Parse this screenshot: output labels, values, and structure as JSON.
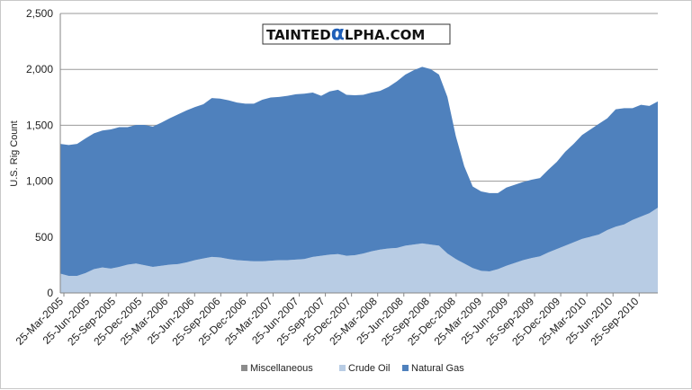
{
  "chart_data": {
    "type": "area",
    "stacked": true,
    "ylabel": "U.S. Rig Count",
    "ylim": [
      0,
      2500
    ],
    "y_ticks": [
      "0",
      "500",
      "1,000",
      "1,500",
      "2,000",
      "2,500"
    ],
    "x_tick_labels": [
      "25-Mar-2005",
      "25-Jun-2005",
      "25-Sep-2005",
      "25-Dec-2005",
      "25-Mar-2006",
      "25-Jun-2006",
      "25-Sep-2006",
      "25-Dec-2006",
      "25-Mar-2007",
      "25-Jun-2007",
      "25-Sep-2007",
      "25-Dec-2007",
      "25-Mar-2008",
      "25-Jun-2008",
      "25-Sep-2008",
      "25-Dec-2008",
      "25-Mar-2009",
      "25-Jun-2009",
      "25-Sep-2009",
      "25-Dec-2009",
      "25-Mar-2010",
      "25-Jun-2010",
      "25-Sep-2010"
    ],
    "grid": "horizontal",
    "legend_position": "bottom",
    "x": [
      "2005-01",
      "2005-02",
      "2005-03",
      "2005-04",
      "2005-05",
      "2005-06",
      "2005-07",
      "2005-08",
      "2005-09",
      "2005-10",
      "2005-11",
      "2005-12",
      "2006-01",
      "2006-02",
      "2006-03",
      "2006-04",
      "2006-05",
      "2006-06",
      "2006-07",
      "2006-08",
      "2006-09",
      "2006-10",
      "2006-11",
      "2006-12",
      "2007-01",
      "2007-02",
      "2007-03",
      "2007-04",
      "2007-05",
      "2007-06",
      "2007-07",
      "2007-08",
      "2007-09",
      "2007-10",
      "2007-11",
      "2007-12",
      "2008-01",
      "2008-02",
      "2008-03",
      "2008-04",
      "2008-05",
      "2008-06",
      "2008-07",
      "2008-08",
      "2008-09",
      "2008-10",
      "2008-11",
      "2008-12",
      "2009-01",
      "2009-02",
      "2009-03",
      "2009-04",
      "2009-05",
      "2009-06",
      "2009-07",
      "2009-08",
      "2009-09",
      "2009-10",
      "2009-11",
      "2009-12",
      "2010-01",
      "2010-02",
      "2010-03",
      "2010-04",
      "2010-05",
      "2010-06",
      "2010-07",
      "2010-08",
      "2010-09",
      "2010-10",
      "2010-11",
      "2010-12"
    ],
    "series": [
      {
        "name": "Miscellaneous",
        "color": "#8c8c8c",
        "values": [
          3,
          3,
          3,
          3,
          3,
          3,
          3,
          3,
          3,
          3,
          3,
          3,
          3,
          3,
          3,
          3,
          3,
          3,
          3,
          3,
          3,
          3,
          3,
          3,
          3,
          3,
          3,
          3,
          3,
          3,
          3,
          3,
          3,
          3,
          3,
          3,
          3,
          3,
          3,
          3,
          3,
          3,
          3,
          3,
          3,
          3,
          3,
          3,
          3,
          3,
          3,
          3,
          3,
          3,
          3,
          3,
          3,
          3,
          3,
          3,
          3,
          3,
          3,
          3,
          3,
          3,
          3,
          3,
          3,
          3,
          3,
          3
        ]
      },
      {
        "name": "Crude Oil",
        "color": "#b8cce4",
        "values": [
          170,
          150,
          150,
          175,
          210,
          225,
          215,
          230,
          250,
          260,
          245,
          230,
          240,
          250,
          255,
          270,
          290,
          305,
          320,
          315,
          300,
          290,
          285,
          280,
          280,
          285,
          290,
          290,
          295,
          300,
          320,
          330,
          340,
          345,
          330,
          335,
          350,
          370,
          385,
          395,
          400,
          420,
          430,
          440,
          430,
          420,
          350,
          300,
          260,
          220,
          195,
          190,
          210,
          240,
          265,
          290,
          310,
          325,
          360,
          390,
          420,
          450,
          480,
          500,
          520,
          560,
          590,
          610,
          650,
          680,
          710,
          760
        ]
      },
      {
        "name": "Natural Gas",
        "color": "#4f81bd",
        "values": [
          1160,
          1170,
          1180,
          1205,
          1215,
          1225,
          1245,
          1250,
          1230,
          1240,
          1255,
          1255,
          1280,
          1310,
          1340,
          1360,
          1370,
          1380,
          1420,
          1420,
          1420,
          1410,
          1405,
          1410,
          1445,
          1460,
          1460,
          1470,
          1480,
          1480,
          1470,
          1430,
          1460,
          1470,
          1440,
          1430,
          1420,
          1420,
          1420,
          1445,
          1490,
          1530,
          1560,
          1580,
          1570,
          1530,
          1400,
          1100,
          870,
          730,
          710,
          700,
          680,
          700,
          700,
          700,
          700,
          700,
          740,
          780,
          840,
          880,
          930,
          960,
          990,
          1000,
          1050,
          1040,
          1000,
          1000,
          960,
          950
        ]
      }
    ]
  },
  "logo": {
    "text_left": "TAINTED",
    "text_alpha": "α",
    "text_right": "LPHA.COM"
  }
}
